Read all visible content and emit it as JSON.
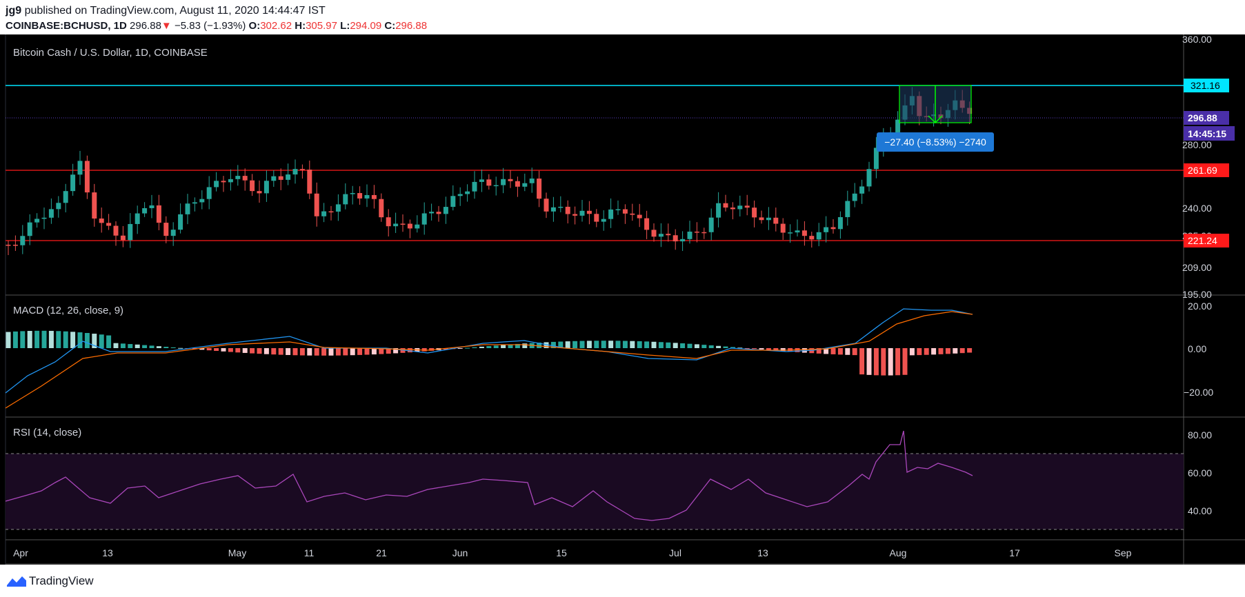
{
  "header": {
    "publisher": "jg9",
    "published_text": "published on TradingView.com, August 11, 2020 14:44:47 IST",
    "symbol": "COINBASE:BCHUSD, 1D",
    "last": "296.88",
    "change": "−5.83 (−1.93%)",
    "o_label": "O:",
    "o_value": "302.62",
    "h_label": "H:",
    "h_value": "305.97",
    "l_label": "L:",
    "l_value": "294.09",
    "c_label": "C:",
    "c_value": "296.88"
  },
  "main_pane": {
    "title": "Bitcoin Cash / U.S. Dollar, 1D, COINBASE",
    "axis_labels": [
      "360.00",
      "280.00",
      "240.00",
      "225.00",
      "209.00",
      "195.00"
    ],
    "levels": [
      {
        "value": "321.16",
        "color": "#00e5ff"
      },
      {
        "value": "261.69",
        "color": "#ff1a1a"
      },
      {
        "value": "221.24",
        "color": "#ff1a1a"
      }
    ],
    "last_price_label": "296.88",
    "countdown_label": "14:45:15",
    "measure_label": "−27.40 (−8.53%) −2740"
  },
  "macd_pane": {
    "title": "MACD (12, 26, close, 9)",
    "axis_labels": [
      "20.00",
      "0.00",
      "−20.00"
    ]
  },
  "rsi_pane": {
    "title": "RSI (14, close)",
    "axis_labels": [
      "80.00",
      "60.00",
      "40.00"
    ]
  },
  "x_axis": {
    "labels": [
      "Apr",
      "13",
      "May",
      "11",
      "21",
      "Jun",
      "15",
      "Jul",
      "13",
      "Aug",
      "17",
      "Sep"
    ]
  },
  "footer": {
    "brand": "TradingView"
  },
  "colors": {
    "up": "#26a69a",
    "down": "#ef5350",
    "macd": "#2196f3",
    "signal": "#ff6d00",
    "rsi": "#ab47bc"
  }
}
